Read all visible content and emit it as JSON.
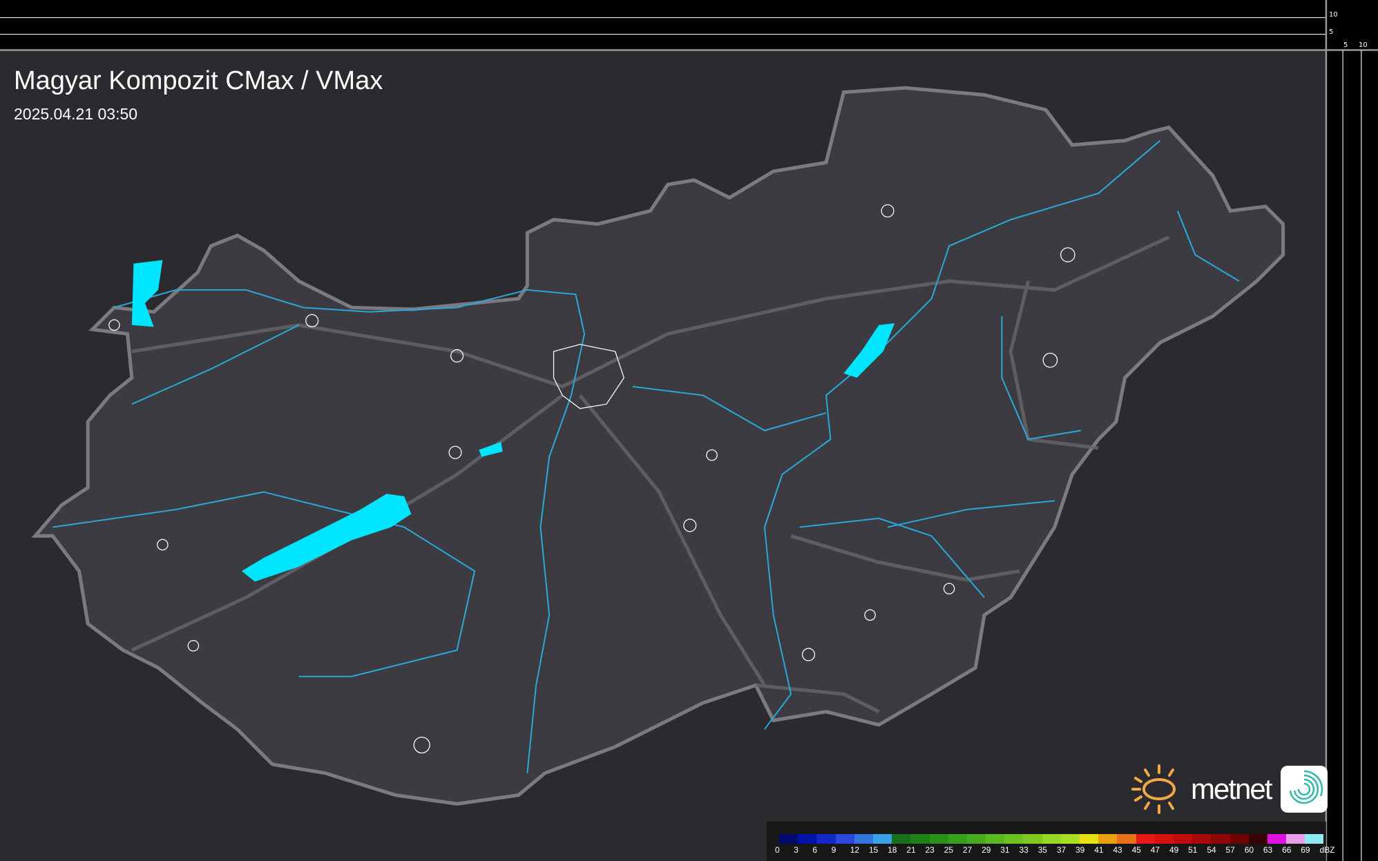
{
  "title": "Magyar Kompozit CMax / VMax",
  "timestamp": "2025.04.21 03:50",
  "scale": {
    "vertical_labels": [
      "10",
      "5"
    ],
    "horizontal_labels": [
      "5",
      "10"
    ]
  },
  "legend": {
    "unit": "dBZ",
    "labels": [
      "0",
      "3",
      "6",
      "9",
      "12",
      "15",
      "18",
      "21",
      "23",
      "25",
      "27",
      "29",
      "31",
      "33",
      "35",
      "37",
      "39",
      "41",
      "43",
      "45",
      "47",
      "49",
      "51",
      "54",
      "57",
      "60",
      "63",
      "66",
      "69"
    ],
    "colors": [
      "#000a6e",
      "#0012a8",
      "#1428c8",
      "#2c48d8",
      "#3474dc",
      "#3ca0e8",
      "#18701a",
      "#1e8016",
      "#2a9018",
      "#36a01c",
      "#48aa1e",
      "#5cb820",
      "#6cc020",
      "#80c820",
      "#98d824",
      "#a8e028",
      "#e8e010",
      "#e8a010",
      "#e87018",
      "#e81818",
      "#d81010",
      "#c00c0c",
      "#a80808",
      "#900606",
      "#700404",
      "#380202",
      "#e010e0",
      "#e8a0e8",
      "#90e8f0"
    ]
  },
  "branding": {
    "logo_text": "metnet"
  },
  "colors": {
    "background": "#2a2a2d",
    "country_fill": "#3a3a3f",
    "water": "#00e5ff",
    "rivers": "#2aa8d8",
    "roads": "#6a6a6e"
  }
}
